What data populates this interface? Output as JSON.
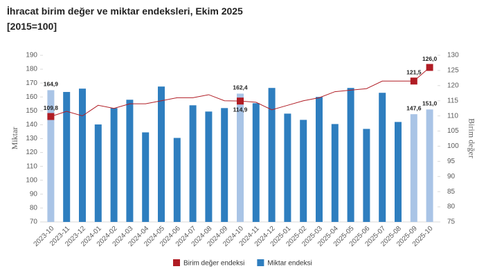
{
  "chart_data": {
    "type": "bar_line",
    "title": "İhracat birim değer ve miktar endeksleri, Ekim 2025",
    "subtitle": "[2015=100]",
    "y_label": "Miktar",
    "y2_label": "Birim değer",
    "categories": [
      "2023-10",
      "2023-11",
      "2023-12",
      "2024-01",
      "2024-02",
      "2024-03",
      "2024-04",
      "2024-05",
      "2024-06",
      "2024-07",
      "2024-08",
      "2024-09",
      "2024-10",
      "2024-11",
      "2024-12",
      "2025-01",
      "2025-02",
      "2025-03",
      "2025-04",
      "2025-05",
      "2025-06",
      "2025-07",
      "2025-08",
      "2025-09",
      "2025-10"
    ],
    "series": [
      {
        "name": "Birim değer endeksi",
        "type": "line",
        "axis": "y2",
        "color": "#b01c24",
        "values": [
          109.8,
          111.5,
          110,
          113.5,
          112.5,
          114,
          114,
          115,
          116,
          116,
          117,
          115,
          114.9,
          114.5,
          112,
          113.5,
          115,
          116,
          118,
          118.5,
          119,
          121.5,
          121.5,
          121.5,
          126.0
        ],
        "value_labels": [
          "109,8",
          null,
          null,
          null,
          null,
          null,
          null,
          null,
          null,
          null,
          null,
          null,
          "114,9",
          null,
          null,
          null,
          null,
          null,
          null,
          null,
          null,
          null,
          null,
          "121,5",
          "126,0"
        ]
      },
      {
        "name": "Miktar endeksi",
        "type": "bar",
        "axis": "y",
        "color": "#2e7ebf",
        "highlight_color": "#a9c4e6",
        "values": [
          164.9,
          163.6,
          166,
          140.2,
          152,
          158,
          134.5,
          167.5,
          130.5,
          154,
          149.5,
          152,
          162.4,
          155.5,
          166.5,
          148,
          143.5,
          160,
          140.5,
          166.5,
          137,
          163,
          142,
          147.6,
          151.0
        ],
        "value_labels": [
          "164,9",
          null,
          null,
          null,
          null,
          null,
          null,
          null,
          null,
          null,
          null,
          null,
          "162,4",
          null,
          null,
          null,
          null,
          null,
          null,
          null,
          null,
          null,
          null,
          "147,6",
          "151,0"
        ]
      }
    ],
    "ylim": [
      70,
      190
    ],
    "yticks": [
      70,
      80,
      90,
      100,
      110,
      120,
      130,
      140,
      150,
      160,
      170,
      180,
      190
    ],
    "y2lim": [
      75,
      130
    ],
    "y2ticks": [
      75,
      80,
      85,
      90,
      95,
      100,
      105,
      110,
      115,
      120,
      125,
      130
    ],
    "grid": false
  }
}
